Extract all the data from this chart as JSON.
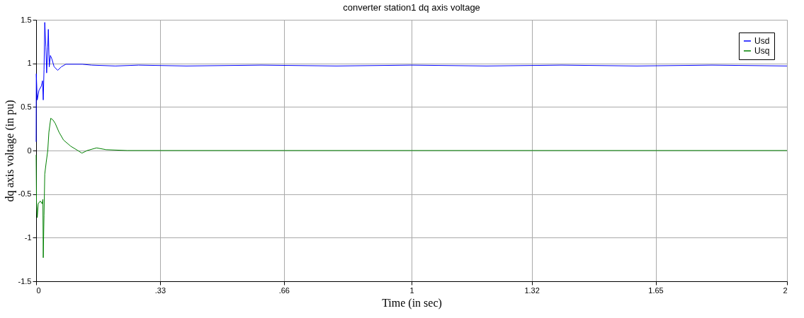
{
  "chart_data": {
    "type": "line",
    "title": "converter station1 dq axis voltage",
    "xlabel": "Time (in sec)",
    "ylabel": "dq axis voltage (in pu)",
    "xlim": [
      0,
      2
    ],
    "xticks": [
      0,
      {
        "value": 0.33,
        "label": ".33"
      },
      {
        "value": 0.66,
        "label": ".66"
      },
      1,
      1.32,
      1.65,
      2
    ],
    "ylim": [
      -1.5,
      1.5
    ],
    "yticks": [
      -1.5,
      -1,
      -0.5,
      0,
      0.5,
      1,
      1.5
    ],
    "grid": true,
    "legend": "top right",
    "line_style": "solid",
    "marker": "none",
    "series": [
      {
        "name": "Usd",
        "color": "#0000ff",
        "x": [
          0,
          0.0005,
          0.003,
          0.0075,
          0.014,
          0.017,
          0.019,
          0.021,
          0.023,
          0.026,
          0.028,
          0.031,
          0.0325,
          0.035,
          0.038,
          0.042,
          0.048,
          0.0575,
          0.067,
          0.079,
          0.123,
          0.148,
          0.211,
          0.273,
          0.4,
          0.6,
          0.8,
          1.0,
          1.2,
          1.4,
          1.6,
          1.8,
          2.0
        ],
        "values": [
          0.1,
          0.88,
          0.58,
          0.69,
          0.74,
          0.8,
          0.58,
          0.93,
          1.47,
          1.19,
          0.89,
          1.19,
          1.39,
          0.96,
          1.09,
          1.05,
          0.96,
          0.92,
          0.96,
          0.99,
          0.99,
          0.98,
          0.97,
          0.98,
          0.97,
          0.98,
          0.97,
          0.98,
          0.97,
          0.98,
          0.97,
          0.98,
          0.97
        ]
      },
      {
        "name": "Usq",
        "color": "#008000",
        "x": [
          0,
          0.001,
          0.003,
          0.0056,
          0.011,
          0.016,
          0.018,
          0.019,
          0.021,
          0.023,
          0.027,
          0.031,
          0.034,
          0.039,
          0.045,
          0.051,
          0.061,
          0.073,
          0.092,
          0.111,
          0.122,
          0.136,
          0.161,
          0.186,
          0.242,
          0.5,
          1.0,
          1.5,
          2.0
        ],
        "values": [
          -0.05,
          -0.58,
          -0.77,
          -0.61,
          -0.58,
          -0.61,
          -0.56,
          -1.23,
          -0.74,
          -0.27,
          -0.13,
          0,
          0.21,
          0.37,
          0.35,
          0.31,
          0.21,
          0.12,
          0.05,
          0,
          -0.03,
          0,
          0.03,
          0.01,
          0,
          0,
          0,
          0,
          0
        ]
      }
    ]
  }
}
